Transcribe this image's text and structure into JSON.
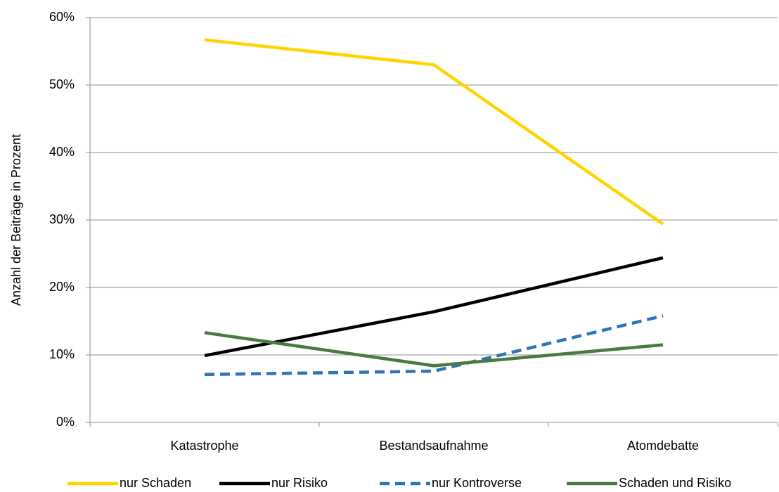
{
  "chart_data": {
    "type": "line",
    "y_label": "Anzahl der Beiträge in Prozent",
    "categories": [
      "Katastrophe",
      "Bestandsaufnahme",
      "Atomdebatte"
    ],
    "series": [
      {
        "name": "nur Schaden",
        "color": "#ffd400",
        "dash": false,
        "values": [
          56.7,
          53.0,
          29.4
        ]
      },
      {
        "name": "nur Risiko",
        "color": "#000000",
        "dash": false,
        "values": [
          9.9,
          16.4,
          24.4
        ]
      },
      {
        "name": "nur Kontroverse",
        "color": "#2e75b6",
        "dash": true,
        "values": [
          7.1,
          7.6,
          15.8
        ]
      },
      {
        "name": "Schaden und Risiko",
        "color": "#4a7a3f",
        "dash": false,
        "values": [
          13.3,
          8.4,
          11.5
        ]
      }
    ],
    "ylim": [
      0,
      60
    ],
    "yticks": [
      {
        "value": 0,
        "label": "0%"
      },
      {
        "value": 10,
        "label": "10%"
      },
      {
        "value": 20,
        "label": "20%"
      },
      {
        "value": 30,
        "label": "30%"
      },
      {
        "value": 40,
        "label": "40%"
      },
      {
        "value": 50,
        "label": "50%"
      },
      {
        "value": 60,
        "label": "60%"
      }
    ],
    "grid": true,
    "legend": "bottom"
  }
}
